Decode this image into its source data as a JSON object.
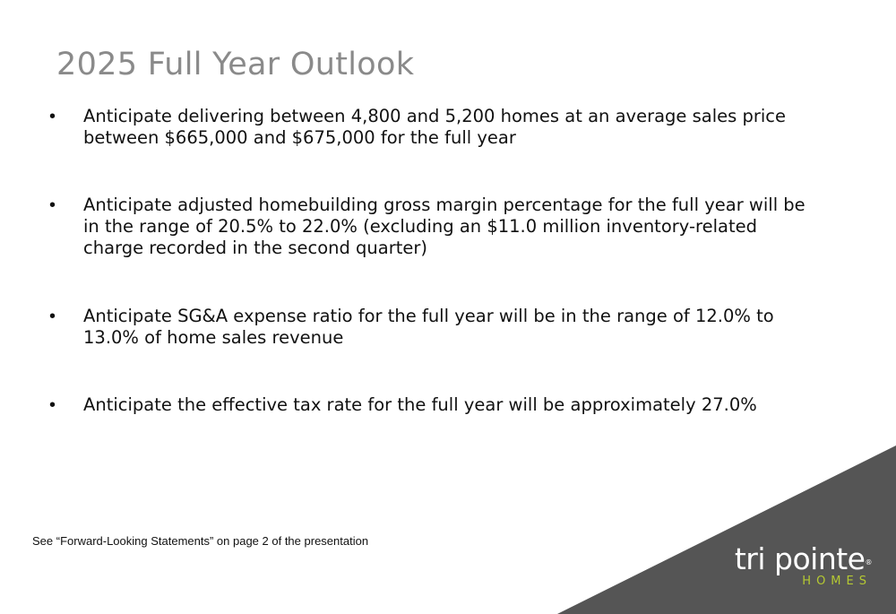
{
  "slide": {
    "title": "2025 Full Year Outlook",
    "bullets": [
      "Anticipate delivering between 4,800 and 5,200 homes at an average sales price between $665,000 and $675,000 for the full year",
      "Anticipate adjusted homebuilding gross margin percentage for the full year will be in the range of 20.5% to 22.0% (excluding an $11.0 million inventory-related charge recorded in the second quarter)",
      "Anticipate SG&A expense ratio for the full year will be in the range of 12.0% to 13.0% of home sales revenue",
      "Anticipate the effective tax rate for the full year will be approximately 27.0%"
    ],
    "bullet_glyph": "•",
    "footnote": "See “Forward-Looking Statements” on page 2 of the presentation"
  },
  "logo": {
    "name": "tri pointe",
    "registered": "®",
    "sub": "HOMES",
    "colors": {
      "main": "#ffffff",
      "accent": "#b5c932"
    }
  },
  "colors": {
    "title": "#8a8a8a",
    "corner_triangle": "#555555",
    "text": "#111111"
  }
}
